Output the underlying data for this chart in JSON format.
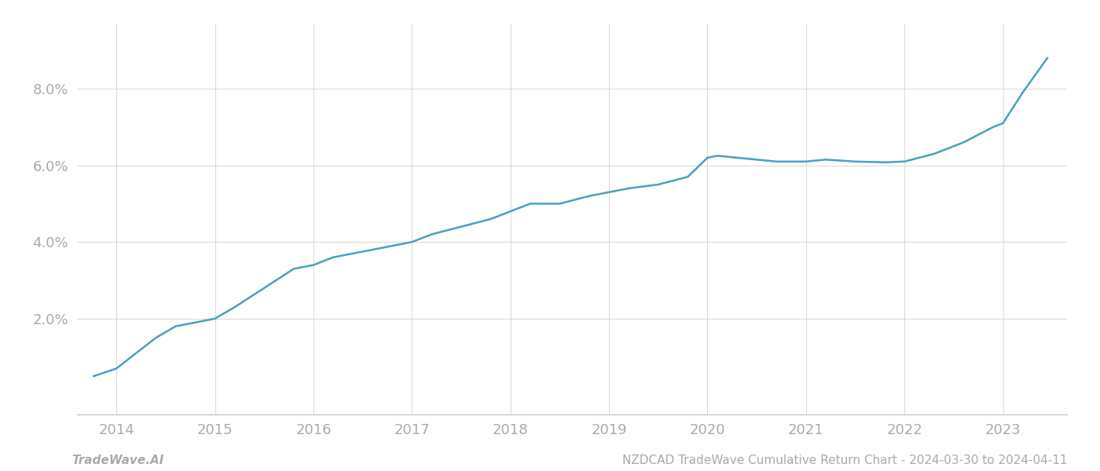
{
  "x_values": [
    2013.77,
    2014.0,
    2014.2,
    2014.4,
    2014.6,
    2014.8,
    2015.0,
    2015.2,
    2015.5,
    2015.8,
    2016.0,
    2016.2,
    2016.4,
    2016.6,
    2016.8,
    2017.0,
    2017.2,
    2017.5,
    2017.8,
    2018.0,
    2018.2,
    2018.5,
    2018.8,
    2019.0,
    2019.2,
    2019.5,
    2019.8,
    2020.0,
    2020.1,
    2020.3,
    2020.5,
    2020.7,
    2021.0,
    2021.2,
    2021.5,
    2021.8,
    2022.0,
    2022.3,
    2022.6,
    2022.9,
    2023.0,
    2023.2,
    2023.45
  ],
  "y_values": [
    0.005,
    0.007,
    0.011,
    0.015,
    0.018,
    0.019,
    0.02,
    0.023,
    0.028,
    0.033,
    0.034,
    0.036,
    0.037,
    0.038,
    0.039,
    0.04,
    0.042,
    0.044,
    0.046,
    0.048,
    0.05,
    0.05,
    0.052,
    0.053,
    0.054,
    0.055,
    0.057,
    0.062,
    0.0625,
    0.062,
    0.0615,
    0.061,
    0.061,
    0.0615,
    0.061,
    0.0608,
    0.061,
    0.063,
    0.066,
    0.07,
    0.071,
    0.079,
    0.088
  ],
  "line_color": "#4a9fc4",
  "line_width": 1.8,
  "background_color": "#ffffff",
  "grid_color": "#cccccc",
  "grid_alpha": 0.7,
  "tick_label_color": "#aaaaaa",
  "x_ticks": [
    2014,
    2015,
    2016,
    2017,
    2018,
    2019,
    2020,
    2021,
    2022,
    2023
  ],
  "y_ticks": [
    0.02,
    0.04,
    0.06,
    0.08
  ],
  "y_tick_labels": [
    "2.0%",
    "4.0%",
    "6.0%",
    "8.0%"
  ],
  "x_lim": [
    2013.6,
    2023.65
  ],
  "y_lim": [
    -0.005,
    0.097
  ],
  "footer_left": "TradeWave.AI",
  "footer_right": "NZDCAD TradeWave Cumulative Return Chart - 2024-03-30 to 2024-04-11",
  "footer_fontsize": 11,
  "tick_fontsize": 13
}
